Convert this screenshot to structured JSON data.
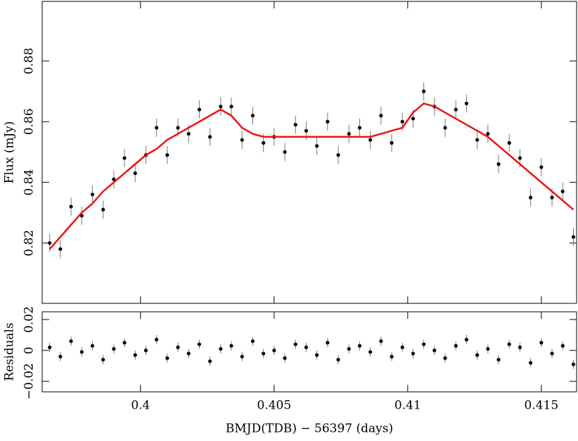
{
  "chart_data": [
    {
      "type": "scatter",
      "ylabel": "Flux (mJy)",
      "x": [
        0.3966,
        0.397,
        0.3974,
        0.3978,
        0.3982,
        0.3986,
        0.399,
        0.3994,
        0.3998,
        0.4002,
        0.4006,
        0.401,
        0.4014,
        0.4018,
        0.4022,
        0.4026,
        0.403,
        0.4034,
        0.4038,
        0.4042,
        0.4046,
        0.405,
        0.4054,
        0.4058,
        0.4062,
        0.4066,
        0.407,
        0.4074,
        0.4078,
        0.4082,
        0.4086,
        0.409,
        0.4094,
        0.4098,
        0.4102,
        0.4106,
        0.411,
        0.4114,
        0.4118,
        0.4122,
        0.4126,
        0.413,
        0.4134,
        0.4138,
        0.4142,
        0.4146,
        0.415,
        0.4154,
        0.4158,
        0.4162
      ],
      "values": [
        0.82,
        0.818,
        0.832,
        0.829,
        0.836,
        0.831,
        0.841,
        0.848,
        0.843,
        0.849,
        0.858,
        0.849,
        0.858,
        0.856,
        0.864,
        0.855,
        0.865,
        0.865,
        0.854,
        0.862,
        0.853,
        0.855,
        0.85,
        0.859,
        0.857,
        0.852,
        0.86,
        0.849,
        0.856,
        0.858,
        0.854,
        0.862,
        0.853,
        0.86,
        0.861,
        0.87,
        0.865,
        0.858,
        0.864,
        0.866,
        0.854,
        0.856,
        0.846,
        0.853,
        0.848,
        0.835,
        0.845,
        0.835,
        0.837,
        0.822
      ],
      "errors": [
        0.003,
        0.003,
        0.003,
        0.003,
        0.003,
        0.003,
        0.003,
        0.003,
        0.003,
        0.003,
        0.003,
        0.003,
        0.003,
        0.003,
        0.003,
        0.003,
        0.003,
        0.003,
        0.003,
        0.003,
        0.003,
        0.003,
        0.003,
        0.003,
        0.003,
        0.003,
        0.003,
        0.003,
        0.003,
        0.003,
        0.003,
        0.003,
        0.003,
        0.003,
        0.003,
        0.003,
        0.003,
        0.003,
        0.003,
        0.003,
        0.003,
        0.003,
        0.003,
        0.003,
        0.003,
        0.003,
        0.003,
        0.003,
        0.003,
        0.003
      ],
      "color": "#000000",
      "model_values": [
        0.818,
        0.822,
        0.826,
        0.83,
        0.833,
        0.837,
        0.84,
        0.843,
        0.846,
        0.849,
        0.851,
        0.854,
        0.856,
        0.858,
        0.86,
        0.862,
        0.864,
        0.862,
        0.858,
        0.856,
        0.855,
        0.855,
        0.855,
        0.855,
        0.855,
        0.855,
        0.855,
        0.855,
        0.855,
        0.855,
        0.855,
        0.856,
        0.857,
        0.858,
        0.863,
        0.866,
        0.865,
        0.863,
        0.861,
        0.859,
        0.857,
        0.855,
        0.852,
        0.849,
        0.846,
        0.843,
        0.84,
        0.837,
        0.834,
        0.831
      ],
      "model_color": "#ee1111",
      "xlim": [
        0.39632,
        0.41632
      ],
      "ylim": [
        0.8001,
        0.89965
      ],
      "xticks": [
        0.4,
        0.405,
        0.41,
        0.415
      ],
      "yticks": [
        0.82,
        0.84,
        0.86,
        0.88
      ]
    },
    {
      "type": "scatter",
      "ylabel": "Residuals",
      "xlabel": "BMJD(TDB) − 56397 (days)",
      "values": [
        0.002,
        -0.004,
        0.006,
        -0.001,
        0.003,
        -0.006,
        0.001,
        0.005,
        -0.003,
        0.0,
        0.007,
        -0.005,
        0.002,
        -0.002,
        0.004,
        -0.007,
        0.001,
        0.003,
        -0.004,
        0.006,
        -0.002,
        0.0,
        -0.005,
        0.004,
        0.002,
        -0.003,
        0.005,
        -0.006,
        0.001,
        0.003,
        -0.001,
        0.006,
        -0.004,
        0.002,
        -0.002,
        0.004,
        0.0,
        -0.005,
        0.003,
        0.007,
        -0.003,
        0.001,
        -0.006,
        0.004,
        0.002,
        -0.008,
        0.005,
        -0.002,
        0.003,
        -0.009
      ],
      "color": "#000000",
      "xlim": [
        0.39632,
        0.41632
      ],
      "ylim": [
        -0.0268,
        0.025
      ],
      "xticks": [
        0.4,
        0.405,
        0.41,
        0.415
      ],
      "yticks": [
        {
          "value": -0.02,
          "label": "−0.02"
        },
        0,
        0.02
      ]
    }
  ]
}
